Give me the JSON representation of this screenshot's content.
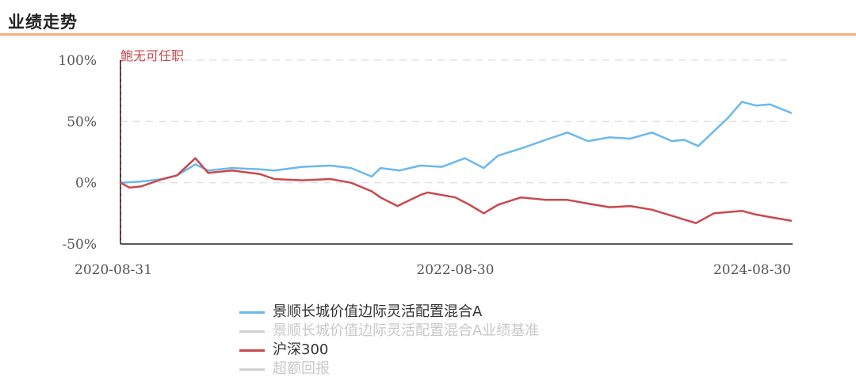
{
  "header": {
    "title": "业绩走势"
  },
  "chart_data": {
    "type": "line",
    "annotation": "鲍无可任职",
    "x_ticks": [
      "2020-08-31",
      "2022-08-30",
      "2024-08-30"
    ],
    "y_ticks": [
      "100%",
      "50%",
      "0%",
      "-50%"
    ],
    "ylim": [
      -50,
      100
    ],
    "grid": true,
    "legend_position": "bottom",
    "series": [
      {
        "name": "景顺长城价值边际灵活配置混合A",
        "color": "#6bb8ec",
        "active": true,
        "x": [
          "2020-08-31",
          "2020-10-15",
          "2020-12-01",
          "2021-01-01",
          "2021-02-10",
          "2021-03-10",
          "2021-05-01",
          "2021-07-01",
          "2021-08-01",
          "2021-10-01",
          "2021-12-01",
          "2022-01-15",
          "2022-03-01",
          "2022-03-20",
          "2022-05-01",
          "2022-06-15",
          "2022-08-01",
          "2022-09-20",
          "2022-10-31",
          "2022-12-01",
          "2023-01-20",
          "2023-03-15",
          "2023-05-01",
          "2023-06-15",
          "2023-08-01",
          "2023-09-15",
          "2023-11-01",
          "2023-12-15",
          "2024-01-10",
          "2024-02-10",
          "2024-03-15",
          "2024-04-15",
          "2024-05-15",
          "2024-06-15",
          "2024-07-15",
          "2024-08-30"
        ],
        "values": [
          0,
          1,
          3,
          6,
          15,
          10,
          12,
          11,
          10,
          13,
          14,
          12,
          5,
          12,
          10,
          14,
          13,
          20,
          12,
          22,
          28,
          35,
          41,
          34,
          37,
          36,
          41,
          34,
          35,
          30,
          42,
          53,
          66,
          63,
          64,
          57
        ]
      },
      {
        "name": "景顺长城价值边际灵活配置混合A业绩基准",
        "color": "#d0d0d0",
        "active": false,
        "x": [],
        "values": []
      },
      {
        "name": "沪深300",
        "color": "#c9494e",
        "active": true,
        "x": [
          "2020-08-31",
          "2020-09-20",
          "2020-10-15",
          "2020-12-01",
          "2021-01-01",
          "2021-02-10",
          "2021-03-10",
          "2021-05-01",
          "2021-07-01",
          "2021-08-01",
          "2021-10-01",
          "2021-12-01",
          "2022-01-15",
          "2022-03-01",
          "2022-03-20",
          "2022-04-26",
          "2022-06-15",
          "2022-07-01",
          "2022-08-30",
          "2022-09-30",
          "2022-10-31",
          "2022-12-01",
          "2023-01-20",
          "2023-03-15",
          "2023-05-01",
          "2023-06-15",
          "2023-08-01",
          "2023-09-15",
          "2023-11-01",
          "2023-12-15",
          "2024-01-10",
          "2024-02-05",
          "2024-03-15",
          "2024-05-15",
          "2024-06-15",
          "2024-07-15",
          "2024-08-30"
        ],
        "values": [
          0,
          -4,
          -3,
          3,
          6,
          20,
          8,
          10,
          7,
          3,
          2,
          3,
          0,
          -7,
          -12,
          -19,
          -10,
          -8,
          -12,
          -18,
          -25,
          -18,
          -12,
          -14,
          -14,
          -17,
          -20,
          -19,
          -22,
          -27,
          -30,
          -33,
          -25,
          -23,
          -26,
          -28,
          -31
        ]
      },
      {
        "name": "超额回报",
        "color": "#d0d0d0",
        "active": false,
        "x": [],
        "values": []
      }
    ]
  }
}
